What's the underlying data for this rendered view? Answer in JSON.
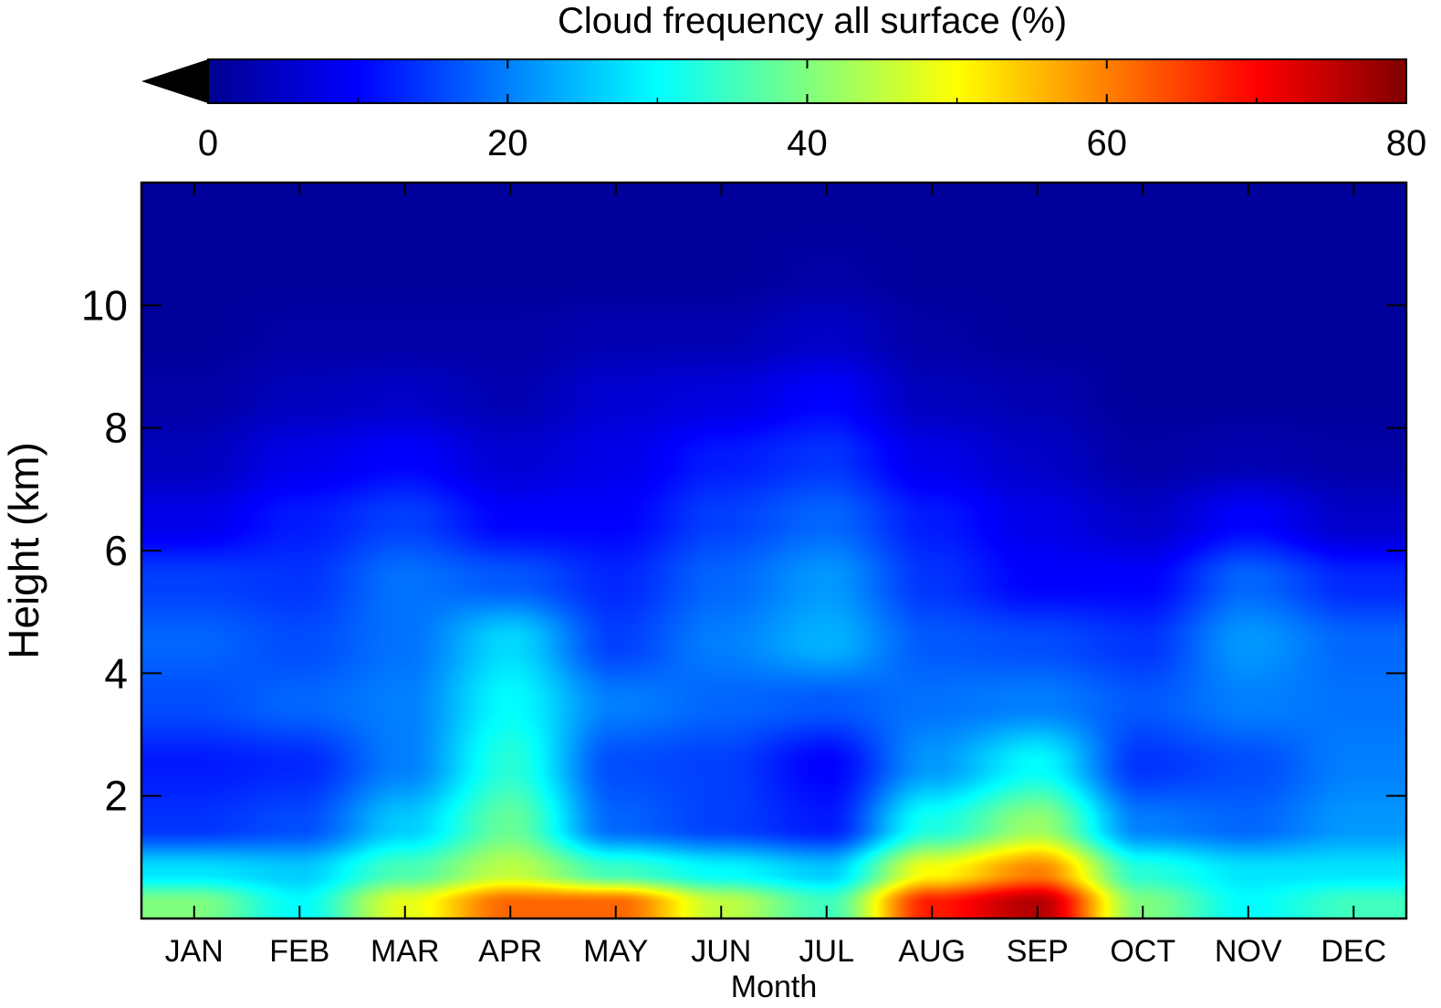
{
  "chart_data": {
    "type": "heatmap",
    "title": "",
    "xlabel": "Month",
    "ylabel": "Height (km)",
    "x_categories": [
      "JAN",
      "FEB",
      "MAR",
      "APR",
      "MAY",
      "JUN",
      "JUL",
      "AUG",
      "SEP",
      "OCT",
      "NOV",
      "DEC"
    ],
    "y_ticks": [
      2,
      4,
      6,
      8,
      10
    ],
    "ylim": [
      0,
      12
    ],
    "y": [
      0.25,
      0.75,
      1.5,
      2.5,
      3.5,
      4.5,
      5.5,
      6.5,
      7.5,
      8.5,
      9.5,
      10.5,
      11.5
    ],
    "values": [
      [
        40,
        30,
        48,
        62,
        62,
        45,
        35,
        68,
        76,
        40,
        30,
        35
      ],
      [
        28,
        26,
        36,
        45,
        35,
        30,
        26,
        50,
        60,
        33,
        28,
        28
      ],
      [
        14,
        16,
        26,
        38,
        18,
        15,
        12,
        32,
        42,
        20,
        18,
        22
      ],
      [
        12,
        13,
        20,
        33,
        16,
        15,
        10,
        22,
        30,
        14,
        16,
        20
      ],
      [
        16,
        18,
        20,
        30,
        20,
        18,
        17,
        19,
        20,
        17,
        20,
        19
      ],
      [
        18,
        16,
        19,
        27,
        15,
        20,
        24,
        17,
        16,
        14,
        22,
        18
      ],
      [
        15,
        14,
        19,
        17,
        13,
        18,
        22,
        14,
        10,
        10,
        18,
        13
      ],
      [
        8,
        12,
        15,
        10,
        10,
        15,
        18,
        12,
        8,
        5,
        10,
        5
      ],
      [
        4,
        8,
        10,
        6,
        8,
        12,
        14,
        8,
        5,
        2,
        3,
        2
      ],
      [
        2,
        4,
        5,
        3,
        6,
        7,
        10,
        4,
        3,
        1,
        1,
        1
      ],
      [
        1,
        2,
        2,
        2,
        3,
        3,
        5,
        2,
        1,
        1,
        1,
        1
      ],
      [
        1,
        1,
        1,
        1,
        1,
        1,
        2,
        1,
        1,
        1,
        1,
        1
      ],
      [
        1,
        1,
        1,
        1,
        1,
        1,
        1,
        1,
        1,
        1,
        1,
        1
      ]
    ],
    "colorbar": {
      "label": "Cloud frequency all surface (%)",
      "range": [
        0,
        80
      ],
      "ticks": [
        0,
        20,
        40,
        60,
        80
      ],
      "extend": "min",
      "colormap": "jet"
    },
    "grid": false
  }
}
